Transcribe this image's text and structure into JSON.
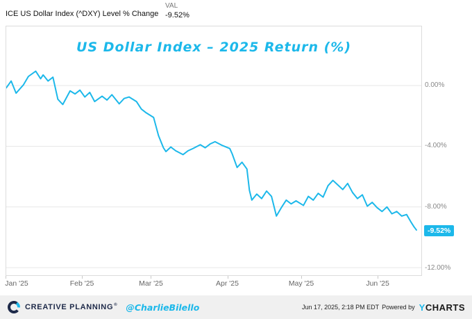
{
  "colors": {
    "accent": "#1cb8ea",
    "navy": "#1e2a49",
    "grid": "#e7e7e7"
  },
  "header": {
    "series_label": "ICE US Dollar Index (^DXY) Level % Change",
    "val_label": "VAL",
    "val_value": "-9.52%"
  },
  "annotation": {
    "title": "US Dollar Index – 2025 Return (%)"
  },
  "badge": {
    "text": "-9.52%"
  },
  "chart_data": {
    "type": "line",
    "title": "US Dollar Index – 2025 Return (%)",
    "series_name": "ICE US Dollar Index (^DXY) Level % Change",
    "x_unit": "day_of_year_2025",
    "x": [
      1,
      3,
      5,
      8,
      10,
      13,
      15,
      16,
      18,
      20,
      22,
      24,
      27,
      29,
      31,
      33,
      35,
      37,
      40,
      42,
      44,
      47,
      49,
      51,
      54,
      56,
      58,
      61,
      63,
      65,
      66,
      68,
      70,
      73,
      75,
      77,
      80,
      82,
      84,
      86,
      89,
      92,
      93,
      95,
      97,
      99,
      100,
      101,
      103,
      105,
      107,
      109,
      111,
      113,
      115,
      117,
      119,
      122,
      124,
      126,
      128,
      130,
      132,
      134,
      136,
      138,
      140,
      142,
      144,
      146,
      148,
      150,
      152,
      154,
      156,
      158,
      160,
      162,
      164,
      166,
      167,
      168
    ],
    "values": [
      -0.15,
      0.3,
      -0.5,
      0.05,
      0.6,
      0.95,
      0.45,
      0.7,
      0.3,
      0.55,
      -0.9,
      -1.25,
      -0.35,
      -0.55,
      -0.3,
      -0.75,
      -0.45,
      -1.05,
      -0.7,
      -0.95,
      -0.6,
      -1.2,
      -0.85,
      -0.75,
      -1.05,
      -1.55,
      -1.8,
      -2.1,
      -3.3,
      -4.1,
      -4.35,
      -4.05,
      -4.3,
      -4.55,
      -4.3,
      -4.15,
      -3.9,
      -4.1,
      -3.85,
      -3.7,
      -3.95,
      -4.15,
      -4.5,
      -5.4,
      -5.05,
      -5.5,
      -6.9,
      -7.55,
      -7.15,
      -7.45,
      -6.95,
      -7.3,
      -8.6,
      -8.05,
      -7.55,
      -7.8,
      -7.6,
      -7.9,
      -7.3,
      -7.55,
      -7.1,
      -7.35,
      -6.6,
      -6.25,
      -6.55,
      -6.85,
      -6.45,
      -7.05,
      -7.45,
      -7.2,
      -7.95,
      -7.7,
      -8.05,
      -8.3,
      -8.0,
      -8.45,
      -8.3,
      -8.6,
      -8.5,
      -9.05,
      -9.3,
      -9.52
    ],
    "xlim": [
      1,
      170
    ],
    "ylim": [
      -12.5,
      3.9
    ],
    "yticks": [
      {
        "value": 0,
        "label": "0.00%"
      },
      {
        "value": -4,
        "label": "-4.00%"
      },
      {
        "value": -8,
        "label": "-8.00%"
      },
      {
        "value": -12,
        "label": "-12.00%"
      }
    ],
    "xticks": [
      {
        "value": 1,
        "label": "Jan '25"
      },
      {
        "value": 32,
        "label": "Feb '25"
      },
      {
        "value": 60,
        "label": "Mar '25"
      },
      {
        "value": 91,
        "label": "Apr '25"
      },
      {
        "value": 121,
        "label": "May '25"
      },
      {
        "value": 152,
        "label": "Jun '25"
      }
    ],
    "line_color": "#1cb8ea",
    "grid": "horizontal",
    "legend": "none",
    "end_label": "-9.52%"
  },
  "footer": {
    "brand": "CREATIVE PLANNING",
    "brand_reg": "®",
    "handle": "@CharlieBilello",
    "timestamp": "Jun 17, 2025, 2:18 PM EDT",
    "powered_by": "Powered by",
    "ycharts_y": "Y",
    "ycharts_rest": "CHARTS"
  }
}
